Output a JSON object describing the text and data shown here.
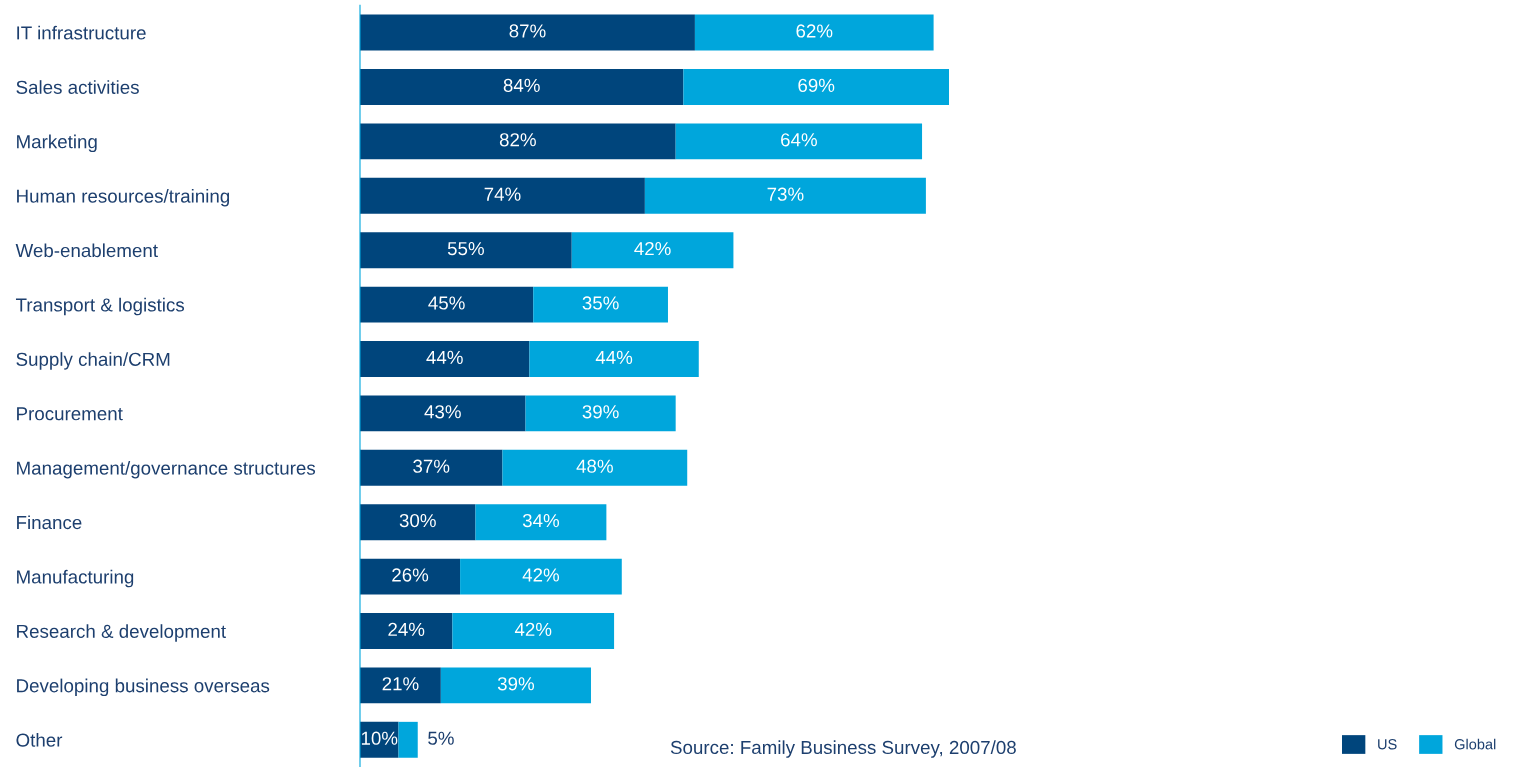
{
  "chart_data": {
    "type": "bar",
    "orientation": "horizontal",
    "stacked": true,
    "legend": "bottom right",
    "grid": false,
    "tick_labels": "y",
    "categories": [
      "IT infrastructure",
      "Sales activities",
      "Marketing",
      "Human resources/training",
      "Web-enablement",
      "Transport & logistics",
      "Supply chain/CRM",
      "Procurement",
      "Management/governance structures",
      "Finance",
      "Manufacturing",
      "Research & development",
      "Developing business overseas",
      "Other"
    ],
    "series": [
      {
        "name": "US",
        "color": "#00457c",
        "values": [
          87,
          84,
          82,
          74,
          55,
          45,
          44,
          43,
          37,
          30,
          26,
          24,
          21,
          10
        ],
        "value_labels": [
          "87%",
          "84%",
          "82%",
          "74%",
          "55%",
          "45%",
          "44%",
          "43%",
          "37%",
          "30%",
          "26%",
          "24%",
          "21%",
          "10%"
        ]
      },
      {
        "name": "Global",
        "color": "#00a6dc",
        "values": [
          62,
          69,
          64,
          73,
          42,
          35,
          44,
          39,
          48,
          34,
          42,
          42,
          39,
          5
        ],
        "value_labels": [
          "62%",
          "69%",
          "64%",
          "73%",
          "42%",
          "35%",
          "44%",
          "39%",
          "48%",
          "34%",
          "42%",
          "42%",
          "39%",
          "5%"
        ]
      }
    ],
    "annotations": [
      "Source: Family Business Survey, 2007/08"
    ]
  }
}
